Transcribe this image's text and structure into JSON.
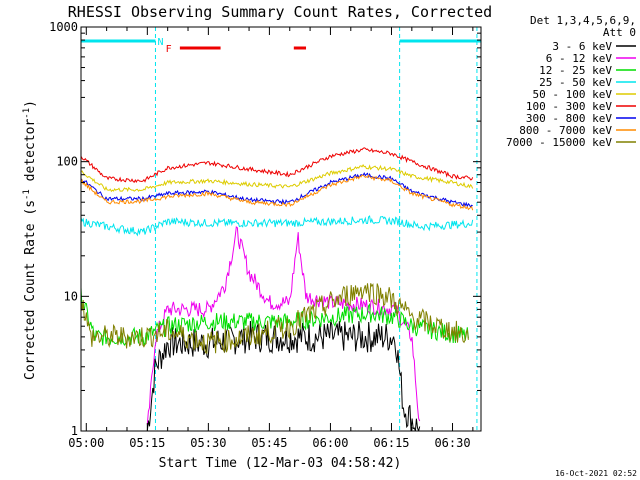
{
  "chart_data": {
    "type": "line",
    "title": "RHESSI Observing Summary Count Rates, Corrected",
    "xlabel": "Start Time (12-Mar-03 04:58:42)",
    "ylabel": "Corrected Count Rate (s",
    "ylabel_sup": "-1",
    "ylabel_mid": " detector",
    "ylabel_sup2": "-1",
    "ylabel_end": ")",
    "y_scale": "log",
    "ylim": [
      1,
      1000
    ],
    "xlim": [
      "04:58:42",
      "06:37:00"
    ],
    "x_ticks": [
      "05:00",
      "05:15",
      "05:30",
      "05:45",
      "06:00",
      "06:15",
      "06:30"
    ],
    "y_ticks": [
      "1",
      "10",
      "100",
      "1000"
    ],
    "detector_info": [
      "Det 1,3,4,5,6,9,",
      "Att 0"
    ],
    "timestamp": "16-Oct-2021 02:52",
    "flags": [
      {
        "label": "N",
        "color": "#00e5ee",
        "segments": [
          [
            "04:58:42",
            "05:17:00"
          ],
          [
            "06:17:00",
            "06:37:00"
          ]
        ],
        "label_at": "05:17:00"
      },
      {
        "label": "F",
        "color": "#ee0000",
        "segments": [
          [
            "05:23:00",
            "05:33:00"
          ],
          [
            "05:51:00",
            "05:54:00"
          ]
        ],
        "label_at": "05:19:00"
      }
    ],
    "night_boundaries": [
      "05:17:00",
      "06:17:00",
      "06:36:00"
    ],
    "series": [
      {
        "name": "3 - 6 keV",
        "color": "#000000",
        "points": [
          [
            "05:15",
            1
          ],
          [
            "05:17",
            3
          ],
          [
            "05:20",
            4.5
          ],
          [
            "05:30",
            4.5
          ],
          [
            "05:40",
            5
          ],
          [
            "05:50",
            5
          ],
          [
            "06:00",
            5
          ],
          [
            "06:10",
            5
          ],
          [
            "06:16",
            5
          ],
          [
            "06:18",
            1.5
          ],
          [
            "06:21",
            1.1
          ],
          [
            "06:22",
            1
          ]
        ]
      },
      {
        "name": "6 - 12 keV",
        "color": "#ee00ee",
        "points": [
          [
            "05:15",
            1
          ],
          [
            "05:17",
            5
          ],
          [
            "05:20",
            8
          ],
          [
            "05:30",
            8
          ],
          [
            "05:34",
            12
          ],
          [
            "05:37",
            30
          ],
          [
            "05:40",
            15
          ],
          [
            "05:45",
            9
          ],
          [
            "05:50",
            9
          ],
          [
            "05:52",
            28
          ],
          [
            "05:54",
            10
          ],
          [
            "06:00",
            9
          ],
          [
            "06:10",
            8.5
          ],
          [
            "06:16",
            8
          ],
          [
            "06:20",
            5
          ],
          [
            "06:22",
            1
          ]
        ]
      },
      {
        "name": "12 - 25 keV",
        "color": "#00dd00",
        "points": [
          [
            "04:58:42",
            10
          ],
          [
            "05:02",
            5
          ],
          [
            "05:14",
            5
          ],
          [
            "05:20",
            6
          ],
          [
            "05:30",
            6.5
          ],
          [
            "05:40",
            6.5
          ],
          [
            "05:50",
            6.5
          ],
          [
            "06:00",
            7
          ],
          [
            "06:10",
            7.5
          ],
          [
            "06:16",
            7
          ],
          [
            "06:20",
            6
          ],
          [
            "06:34",
            5
          ]
        ]
      },
      {
        "name": "25 - 50 keV",
        "color": "#00e5ee",
        "points": [
          [
            "04:58:42",
            36
          ],
          [
            "05:05",
            33
          ],
          [
            "05:14",
            30
          ],
          [
            "05:20",
            36
          ],
          [
            "05:30",
            35
          ],
          [
            "05:40",
            35
          ],
          [
            "05:50",
            35
          ],
          [
            "06:00",
            36
          ],
          [
            "06:10",
            37
          ],
          [
            "06:17",
            36
          ],
          [
            "06:22",
            33
          ],
          [
            "06:30",
            34
          ],
          [
            "06:35",
            35
          ]
        ]
      },
      {
        "name": "50 - 100 keV",
        "color": "#ddcc00",
        "points": [
          [
            "04:58:42",
            85
          ],
          [
            "05:05",
            62
          ],
          [
            "05:14",
            62
          ],
          [
            "05:20",
            70
          ],
          [
            "05:30",
            72
          ],
          [
            "05:40",
            68
          ],
          [
            "05:50",
            65
          ],
          [
            "06:00",
            82
          ],
          [
            "06:08",
            92
          ],
          [
            "06:15",
            88
          ],
          [
            "06:20",
            78
          ],
          [
            "06:30",
            70
          ],
          [
            "06:35",
            65
          ]
        ]
      },
      {
        "name": "100 - 300 keV",
        "color": "#ee0000",
        "points": [
          [
            "04:58:42",
            110
          ],
          [
            "05:05",
            75
          ],
          [
            "05:14",
            72
          ],
          [
            "05:20",
            90
          ],
          [
            "05:30",
            98
          ],
          [
            "05:40",
            88
          ],
          [
            "05:50",
            80
          ],
          [
            "06:00",
            110
          ],
          [
            "06:08",
            123
          ],
          [
            "06:15",
            115
          ],
          [
            "06:20",
            100
          ],
          [
            "06:30",
            78
          ],
          [
            "06:35",
            75
          ]
        ]
      },
      {
        "name": "300 - 800 keV",
        "color": "#0000ee",
        "points": [
          [
            "04:58:42",
            75
          ],
          [
            "05:05",
            53
          ],
          [
            "05:14",
            53
          ],
          [
            "05:20",
            58
          ],
          [
            "05:30",
            60
          ],
          [
            "05:40",
            52
          ],
          [
            "05:50",
            50
          ],
          [
            "06:00",
            70
          ],
          [
            "06:08",
            80
          ],
          [
            "06:15",
            75
          ],
          [
            "06:20",
            60
          ],
          [
            "06:30",
            50
          ],
          [
            "06:35",
            47
          ]
        ]
      },
      {
        "name": "800 - 7000 keV",
        "color": "#ff8c00",
        "points": [
          [
            "04:58:42",
            72
          ],
          [
            "05:05",
            50
          ],
          [
            "05:14",
            51
          ],
          [
            "05:20",
            55
          ],
          [
            "05:30",
            58
          ],
          [
            "05:40",
            50
          ],
          [
            "05:50",
            48
          ],
          [
            "06:00",
            67
          ],
          [
            "06:08",
            78
          ],
          [
            "06:15",
            72
          ],
          [
            "06:20",
            58
          ],
          [
            "06:30",
            48
          ],
          [
            "06:35",
            45
          ]
        ]
      },
      {
        "name": "7000 - 15000 keV",
        "color": "#808000",
        "points": [
          [
            "04:58:42",
            10
          ],
          [
            "05:01",
            5
          ],
          [
            "05:14",
            5
          ],
          [
            "05:20",
            5.5
          ],
          [
            "05:30",
            4.5
          ],
          [
            "05:40",
            5
          ],
          [
            "05:50",
            6
          ],
          [
            "06:00",
            9
          ],
          [
            "06:08",
            11.5
          ],
          [
            "06:14",
            10
          ],
          [
            "06:20",
            7
          ],
          [
            "06:34",
            5
          ]
        ]
      }
    ]
  }
}
